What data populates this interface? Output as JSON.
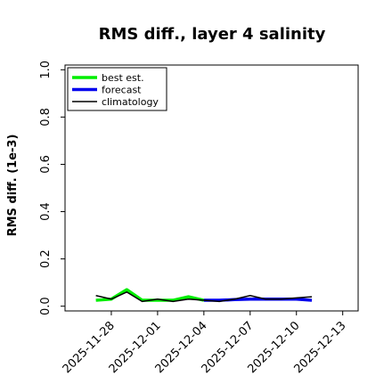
{
  "chart_data": {
    "type": "line",
    "title": "RMS diff., layer 4 salinity",
    "xlabel": "",
    "ylabel": "RMS diff. (1e-3)",
    "x_range": [
      "2025-11-25",
      "2025-12-14"
    ],
    "ylim": [
      -0.02,
      1.02
    ],
    "yticks": [
      0.0,
      0.2,
      0.4,
      0.6,
      0.8,
      1.0
    ],
    "ytick_labels": [
      "0.0",
      "0.2",
      "0.4",
      "0.6",
      "0.8",
      "1.0"
    ],
    "xticks": [
      "2025-11-28",
      "2025-12-01",
      "2025-12-04",
      "2025-12-07",
      "2025-12-10",
      "2025-12-13"
    ],
    "xtick_labels": [
      "2025-11-28",
      "2025-12-01",
      "2025-12-04",
      "2025-12-07",
      "2025-12-10",
      "2025-12-13"
    ],
    "highlight_tick": "2025-12-04",
    "highlight_color": "#2e8b2e",
    "grid": false,
    "legend_position": "upper-left",
    "series": [
      {
        "name": "best est.",
        "color": "#00ee00",
        "x": [
          "2025-11-27",
          "2025-11-28",
          "2025-11-29",
          "2025-11-30",
          "2025-12-01",
          "2025-12-02",
          "2025-12-03",
          "2025-12-04"
        ],
        "values": [
          0.025,
          0.03,
          0.07,
          0.025,
          0.025,
          0.025,
          0.04,
          0.025
        ]
      },
      {
        "name": "forecast",
        "color": "#0000ee",
        "x": [
          "2025-12-04",
          "2025-12-05",
          "2025-12-06",
          "2025-12-07",
          "2025-12-08",
          "2025-12-09",
          "2025-12-10",
          "2025-12-11"
        ],
        "values": [
          0.025,
          0.025,
          0.028,
          0.03,
          0.03,
          0.03,
          0.03,
          0.025
        ]
      },
      {
        "name": "climatology",
        "color": "#000000",
        "x": [
          "2025-11-27",
          "2025-11-28",
          "2025-11-29",
          "2025-11-30",
          "2025-12-01",
          "2025-12-02",
          "2025-12-03",
          "2025-12-04",
          "2025-12-05",
          "2025-12-06",
          "2025-12-07",
          "2025-12-08",
          "2025-12-09",
          "2025-12-10",
          "2025-12-11"
        ],
        "values": [
          0.045,
          0.03,
          0.06,
          0.02,
          0.03,
          0.02,
          0.03,
          0.025,
          0.02,
          0.03,
          0.045,
          0.03,
          0.03,
          0.035,
          0.04
        ]
      }
    ]
  }
}
